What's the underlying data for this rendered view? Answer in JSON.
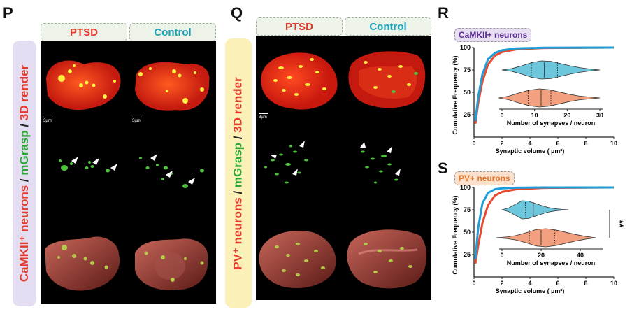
{
  "panel_letters": {
    "P": "P",
    "Q": "Q",
    "R": "R",
    "S": "S"
  },
  "headers": {
    "ptsd": "PTSD",
    "control": "Control"
  },
  "sideP": {
    "a": "CaMKII⁺ neurons",
    "b": " / ",
    "c": "mGrasp",
    "d": " / ",
    "e": "3D render"
  },
  "sideQ": {
    "a": "PV⁺ neurons",
    "b": " / ",
    "c": "mGrasp",
    "d": " / ",
    "e": "3D render"
  },
  "scalebars": [
    "3µm",
    "3µm",
    "3µm"
  ],
  "colors": {
    "ptsd": "#e8492f",
    "control": "#1e9dd8",
    "violin_ptsd": "#f2a080",
    "violin_ctrl": "#6cc6dc"
  },
  "chart_data": [
    {
      "type": "line",
      "title": "CaMKII+ neurons",
      "xlabel": "Synaptic volume ( µm³)",
      "ylabel": "Cumulative Frequency (%)",
      "xlim": [
        0,
        10
      ],
      "ylim": [
        0,
        100
      ],
      "xticks": [
        "0",
        "2",
        "4",
        "6",
        "8",
        "10"
      ],
      "yticks": [
        "25",
        "50",
        "75",
        "100"
      ],
      "series": [
        {
          "points": [
            [
              0.1,
              15
            ],
            [
              0.3,
              38
            ],
            [
              0.6,
              62
            ],
            [
              1.0,
              81
            ],
            [
              1.5,
              91
            ],
            [
              2,
              95
            ],
            [
              3,
              98
            ],
            [
              5,
              99.5
            ],
            [
              10,
              100
            ]
          ]
        },
        {
          "points": [
            [
              0.1,
              18
            ],
            [
              0.3,
              45
            ],
            [
              0.6,
              70
            ],
            [
              1.0,
              87
            ],
            [
              1.5,
              94
            ],
            [
              2,
              97
            ],
            [
              3,
              99
            ],
            [
              5,
              99.8
            ],
            [
              10,
              100
            ]
          ]
        }
      ],
      "inset": {
        "type": "violin",
        "xlabel": "Number of synapses / neuron",
        "xlim": [
          0,
          30
        ],
        "xticks": [
          "0",
          "10",
          "20",
          "30"
        ]
      }
    },
    {
      "type": "line",
      "title": "PV+ neurons",
      "xlabel": "Synaptic volume ( µm³)",
      "ylabel": "Cumulative Frequency (%)",
      "xlim": [
        0,
        10
      ],
      "ylim": [
        0,
        100
      ],
      "xticks": [
        "0",
        "2",
        "4",
        "6",
        "8",
        "10"
      ],
      "yticks": [
        "25",
        "50",
        "75",
        "100"
      ],
      "significance": "**",
      "series": [
        {
          "points": [
            [
              0.1,
              15
            ],
            [
              0.3,
              35
            ],
            [
              0.6,
              60
            ],
            [
              1.0,
              80
            ],
            [
              1.5,
              91
            ],
            [
              2,
              95
            ],
            [
              3,
              98
            ],
            [
              5,
              99.5
            ],
            [
              10,
              100
            ]
          ]
        },
        {
          "points": [
            [
              0.1,
              20
            ],
            [
              0.3,
              55
            ],
            [
              0.6,
              82
            ],
            [
              1.0,
              94
            ],
            [
              1.5,
              98
            ],
            [
              2,
              99
            ],
            [
              3,
              99.7
            ],
            [
              5,
              100
            ],
            [
              10,
              100
            ]
          ]
        }
      ],
      "inset": {
        "type": "violin",
        "xlabel": "Number of synapses / neuron",
        "xlim": [
          0,
          50
        ],
        "xticks": [
          "0",
          "20",
          "40"
        ]
      }
    }
  ]
}
